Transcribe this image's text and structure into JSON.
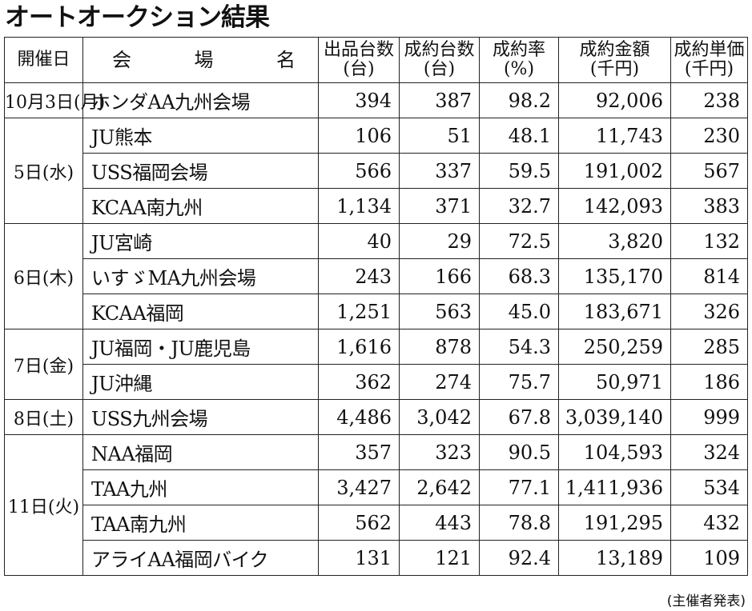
{
  "title": "オートオークション結果",
  "headers": {
    "date": "開催日",
    "venue": [
      "会",
      "場",
      "名"
    ],
    "listed": [
      "出品台数",
      "(台)"
    ],
    "sold": [
      "成約台数",
      "(台)"
    ],
    "rate": [
      "成約率",
      "(%)"
    ],
    "amount": [
      "成約金額",
      "(千円)"
    ],
    "unit_price": [
      "成約単価",
      "(千円)"
    ]
  },
  "groups": [
    {
      "date": "10月3日(月)",
      "rows": [
        {
          "venue": "ホンダAA九州会場",
          "listed": "394",
          "sold": "387",
          "rate": "98.2",
          "amount": "92,006",
          "unit": "238"
        }
      ]
    },
    {
      "date": "5日(水)",
      "rows": [
        {
          "venue": "JU熊本",
          "listed": "106",
          "sold": "51",
          "rate": "48.1",
          "amount": "11,743",
          "unit": "230"
        },
        {
          "venue": "USS福岡会場",
          "listed": "566",
          "sold": "337",
          "rate": "59.5",
          "amount": "191,002",
          "unit": "567"
        },
        {
          "venue": "KCAA南九州",
          "listed": "1,134",
          "sold": "371",
          "rate": "32.7",
          "amount": "142,093",
          "unit": "383"
        }
      ]
    },
    {
      "date": "6日(木)",
      "rows": [
        {
          "venue": "JU宮崎",
          "listed": "40",
          "sold": "29",
          "rate": "72.5",
          "amount": "3,820",
          "unit": "132"
        },
        {
          "venue": "いすゞMA九州会場",
          "listed": "243",
          "sold": "166",
          "rate": "68.3",
          "amount": "135,170",
          "unit": "814"
        },
        {
          "venue": "KCAA福岡",
          "listed": "1,251",
          "sold": "563",
          "rate": "45.0",
          "amount": "183,671",
          "unit": "326"
        }
      ]
    },
    {
      "date": "7日(金)",
      "rows": [
        {
          "venue": "JU福岡・JU鹿児島",
          "listed": "1,616",
          "sold": "878",
          "rate": "54.3",
          "amount": "250,259",
          "unit": "285"
        },
        {
          "venue": "JU沖縄",
          "listed": "362",
          "sold": "274",
          "rate": "75.7",
          "amount": "50,971",
          "unit": "186"
        }
      ]
    },
    {
      "date": "8日(土)",
      "rows": [
        {
          "venue": "USS九州会場",
          "listed": "4,486",
          "sold": "3,042",
          "rate": "67.8",
          "amount": "3,039,140",
          "unit": "999"
        }
      ]
    },
    {
      "date": "11日(火)",
      "rows": [
        {
          "venue": "NAA福岡",
          "listed": "357",
          "sold": "323",
          "rate": "90.5",
          "amount": "104,593",
          "unit": "324"
        },
        {
          "venue": "TAA九州",
          "listed": "3,427",
          "sold": "2,642",
          "rate": "77.1",
          "amount": "1,411,936",
          "unit": "534"
        },
        {
          "venue": "TAA南九州",
          "listed": "562",
          "sold": "443",
          "rate": "78.8",
          "amount": "191,295",
          "unit": "432"
        },
        {
          "venue": "アライAA福岡バイク",
          "listed": "131",
          "sold": "121",
          "rate": "92.4",
          "amount": "13,189",
          "unit": "109"
        }
      ]
    }
  ],
  "footer": "(主催者発表)"
}
